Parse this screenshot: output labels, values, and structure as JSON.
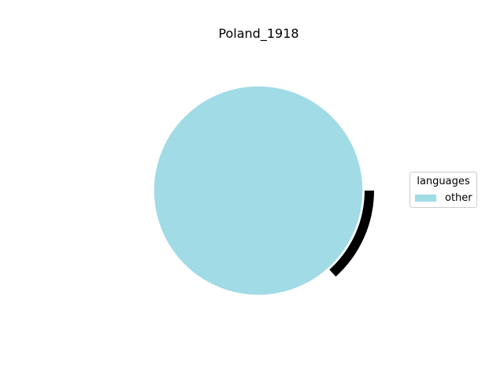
{
  "chart_data": {
    "type": "pie",
    "title": "Poland_1918",
    "slices": [
      {
        "label": "other",
        "value": 100,
        "color": "#a0dbe6"
      }
    ],
    "legend": {
      "title": "languages",
      "placement": "center-right"
    },
    "ring_accent_color": "#000000"
  }
}
